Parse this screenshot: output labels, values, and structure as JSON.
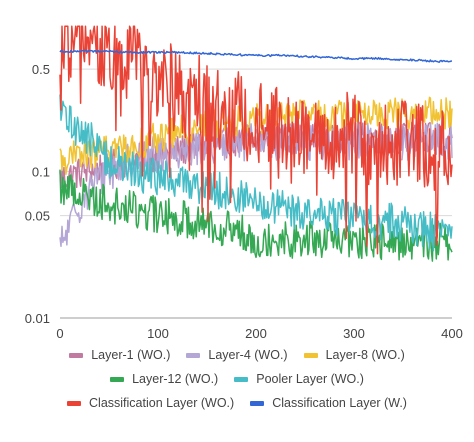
{
  "chart_data": {
    "type": "line",
    "title": "",
    "xlabel": "",
    "ylabel": "",
    "xlim": [
      0,
      400
    ],
    "ylim": [
      0.01,
      1.0
    ],
    "yscale": "log",
    "grid": true,
    "legend_position": "bottom",
    "x_ticks": [
      "0",
      "100",
      "200",
      "300",
      "400"
    ],
    "y_ticks": [
      {
        "value": 0.5,
        "label": "0.5"
      },
      {
        "value": 0.1,
        "label": "0.1"
      },
      {
        "value": 0.05,
        "label": "0.05"
      },
      {
        "value": 0.01,
        "label": "0.01"
      }
    ],
    "x": [
      0,
      25,
      50,
      75,
      100,
      125,
      150,
      175,
      200,
      225,
      250,
      275,
      300,
      325,
      350,
      375,
      400
    ],
    "series": [
      {
        "name": "Layer-1  (WO.)",
        "color": "#c27ba0",
        "values": [
          0.09,
          0.1,
          0.11,
          0.12,
          0.13,
          0.14,
          0.15,
          0.16,
          0.16,
          0.17,
          0.17,
          0.17,
          0.17,
          0.17,
          0.17,
          0.17,
          0.17
        ],
        "noise": 0.25
      },
      {
        "name": "Layer-4  (WO.)",
        "color": "#b4a7d6",
        "values": [
          0.03,
          0.07,
          0.1,
          0.12,
          0.13,
          0.14,
          0.15,
          0.15,
          0.16,
          0.16,
          0.16,
          0.16,
          0.16,
          0.16,
          0.16,
          0.16,
          0.16
        ],
        "noise": 0.3
      },
      {
        "name": "Layer-8  (WO.)",
        "color": "#f1c232",
        "values": [
          0.12,
          0.13,
          0.14,
          0.15,
          0.17,
          0.19,
          0.21,
          0.22,
          0.23,
          0.24,
          0.24,
          0.24,
          0.24,
          0.25,
          0.25,
          0.25,
          0.25
        ],
        "noise": 0.25
      },
      {
        "name": "Layer-12  (WO.)",
        "color": "#34a853",
        "values": [
          0.08,
          0.07,
          0.06,
          0.055,
          0.05,
          0.048,
          0.045,
          0.04,
          0.035,
          0.035,
          0.034,
          0.034,
          0.033,
          0.033,
          0.033,
          0.033,
          0.033
        ],
        "noise": 0.3
      },
      {
        "name": "Pooler Layer (WO.)",
        "color": "#46bdc6",
        "values": [
          0.25,
          0.18,
          0.12,
          0.1,
          0.09,
          0.085,
          0.08,
          0.07,
          0.06,
          0.055,
          0.052,
          0.05,
          0.048,
          0.046,
          0.045,
          0.04,
          0.035
        ],
        "noise": 0.3
      },
      {
        "name": "Classification Layer  (WO.)",
        "color": "#ea4335",
        "values": [
          0.85,
          0.75,
          0.7,
          0.6,
          0.45,
          0.35,
          0.3,
          0.25,
          0.22,
          0.2,
          0.19,
          0.18,
          0.17,
          0.16,
          0.15,
          0.15,
          0.14
        ],
        "noise": 0.7
      },
      {
        "name": "Classification Layer  (W.)",
        "color": "#3367d6",
        "values": [
          0.66,
          0.66,
          0.66,
          0.65,
          0.65,
          0.65,
          0.64,
          0.63,
          0.62,
          0.62,
          0.61,
          0.6,
          0.59,
          0.59,
          0.58,
          0.57,
          0.56
        ],
        "noise": 0.015
      }
    ]
  }
}
